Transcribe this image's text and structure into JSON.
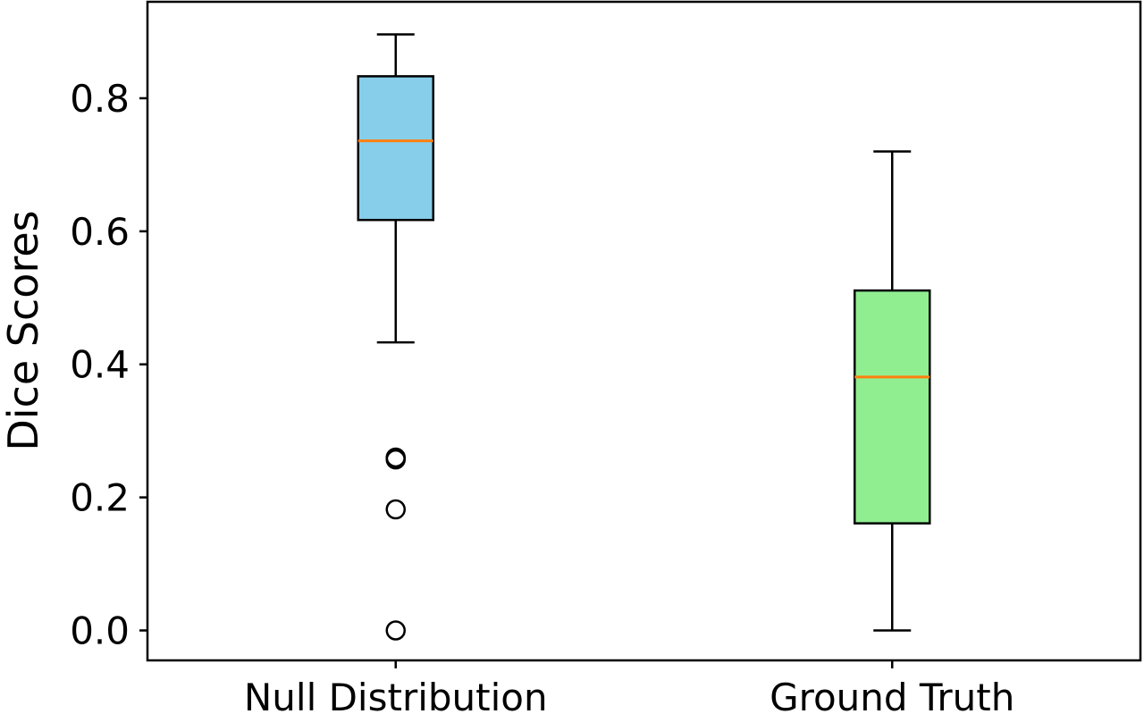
{
  "chart_data": {
    "type": "boxplot",
    "title": "",
    "xlabel": "",
    "ylabel": "Dice Scores",
    "ylim": [
      -0.045,
      0.945
    ],
    "yticks": [
      0.0,
      0.2,
      0.4,
      0.6,
      0.8
    ],
    "ytick_labels": [
      "0.0",
      "0.2",
      "0.4",
      "0.6",
      "0.8"
    ],
    "grid": false,
    "legend": "none",
    "categories": [
      "Null Distribution",
      "Ground Truth"
    ],
    "boxes": [
      {
        "name": "Null Distribution",
        "whisker_low": 0.433,
        "q1": 0.617,
        "median": 0.736,
        "q3": 0.833,
        "whisker_high": 0.896,
        "outliers": [
          0.26,
          0.257,
          0.182,
          0.0
        ],
        "fill_color": "#87ceeb"
      },
      {
        "name": "Ground Truth",
        "whisker_low": 0.0,
        "q1": 0.161,
        "median": 0.381,
        "q3": 0.511,
        "whisker_high": 0.72,
        "outliers": [],
        "fill_color": "#90ee90"
      }
    ],
    "median_color": "#ff7f0e"
  }
}
